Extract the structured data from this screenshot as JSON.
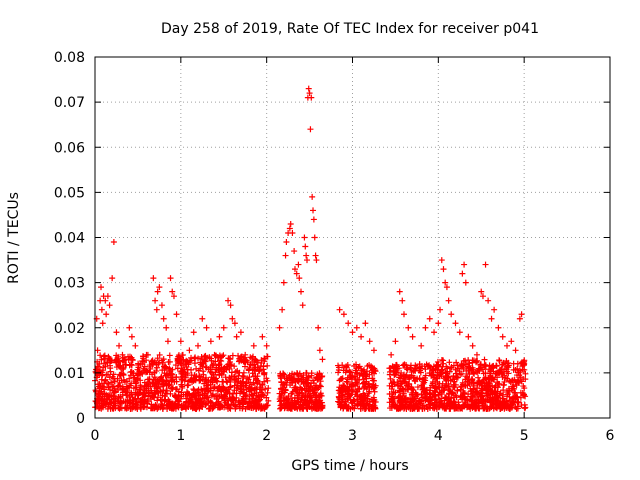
{
  "chart_data": {
    "type": "scatter",
    "title": "Day 258 of 2019, Rate Of TEC Index for receiver p041",
    "xlabel": "GPS time / hours",
    "ylabel": "ROTI / TECUs",
    "xlim": [
      0,
      6
    ],
    "ylim": [
      0,
      0.08
    ],
    "x_ticks": [
      0,
      1,
      2,
      3,
      4,
      5,
      6
    ],
    "x_tick_labels": [
      "0",
      "1",
      "2",
      "3",
      "4",
      "5",
      "6"
    ],
    "y_ticks": [
      0,
      0.01,
      0.02,
      0.03,
      0.04,
      0.05,
      0.06,
      0.07,
      0.08
    ],
    "y_tick_labels": [
      "0",
      "0.01",
      "0.02",
      "0.03",
      "0.04",
      "0.05",
      "0.06",
      "0.07",
      "0.08"
    ],
    "grid": true,
    "marker": "+",
    "color": "#ff0000",
    "series": [
      {
        "name": "ROTI",
        "points": [
          [
            0.02,
            0.022
          ],
          [
            0.03,
            0.015
          ],
          [
            0.05,
            0.012
          ],
          [
            0.06,
            0.026
          ],
          [
            0.07,
            0.029
          ],
          [
            0.08,
            0.024
          ],
          [
            0.09,
            0.021
          ],
          [
            0.1,
            0.027
          ],
          [
            0.12,
            0.026
          ],
          [
            0.13,
            0.023
          ],
          [
            0.15,
            0.027
          ],
          [
            0.17,
            0.025
          ],
          [
            0.2,
            0.031
          ],
          [
            0.22,
            0.039
          ],
          [
            0.25,
            0.019
          ],
          [
            0.28,
            0.016
          ],
          [
            0.32,
            0.014
          ],
          [
            0.35,
            0.013
          ],
          [
            0.4,
            0.02
          ],
          [
            0.43,
            0.018
          ],
          [
            0.47,
            0.016
          ],
          [
            0.55,
            0.012
          ],
          [
            0.6,
            0.014
          ],
          [
            0.68,
            0.031
          ],
          [
            0.7,
            0.026
          ],
          [
            0.72,
            0.024
          ],
          [
            0.73,
            0.028
          ],
          [
            0.75,
            0.029
          ],
          [
            0.78,
            0.025
          ],
          [
            0.8,
            0.022
          ],
          [
            0.83,
            0.02
          ],
          [
            0.85,
            0.017
          ],
          [
            0.88,
            0.031
          ],
          [
            0.9,
            0.028
          ],
          [
            0.92,
            0.027
          ],
          [
            0.95,
            0.023
          ],
          [
            1.0,
            0.017
          ],
          [
            1.05,
            0.012
          ],
          [
            1.1,
            0.015
          ],
          [
            1.15,
            0.019
          ],
          [
            1.2,
            0.016
          ],
          [
            1.25,
            0.022
          ],
          [
            1.3,
            0.02
          ],
          [
            1.35,
            0.017
          ],
          [
            1.45,
            0.018
          ],
          [
            1.5,
            0.02
          ],
          [
            1.55,
            0.026
          ],
          [
            1.58,
            0.025
          ],
          [
            1.6,
            0.022
          ],
          [
            1.63,
            0.021
          ],
          [
            1.65,
            0.018
          ],
          [
            1.7,
            0.019
          ],
          [
            1.75,
            0.014
          ],
          [
            1.85,
            0.016
          ],
          [
            1.95,
            0.018
          ],
          [
            2.0,
            0.016
          ],
          [
            2.15,
            0.02
          ],
          [
            2.18,
            0.024
          ],
          [
            2.2,
            0.03
          ],
          [
            2.22,
            0.036
          ],
          [
            2.23,
            0.039
          ],
          [
            2.25,
            0.041
          ],
          [
            2.27,
            0.042
          ],
          [
            2.28,
            0.043
          ],
          [
            2.3,
            0.041
          ],
          [
            2.32,
            0.037
          ],
          [
            2.33,
            0.033
          ],
          [
            2.35,
            0.032
          ],
          [
            2.37,
            0.034
          ],
          [
            2.38,
            0.031
          ],
          [
            2.4,
            0.028
          ],
          [
            2.42,
            0.025
          ],
          [
            2.44,
            0.04
          ],
          [
            2.45,
            0.038
          ],
          [
            2.46,
            0.036
          ],
          [
            2.47,
            0.035
          ],
          [
            2.48,
            0.071
          ],
          [
            2.49,
            0.073
          ],
          [
            2.5,
            0.072
          ],
          [
            2.51,
            0.064
          ],
          [
            2.52,
            0.071
          ],
          [
            2.53,
            0.049
          ],
          [
            2.54,
            0.046
          ],
          [
            2.55,
            0.044
          ],
          [
            2.56,
            0.04
          ],
          [
            2.57,
            0.036
          ],
          [
            2.58,
            0.035
          ],
          [
            2.6,
            0.02
          ],
          [
            2.62,
            0.015
          ],
          [
            2.65,
            0.013
          ],
          [
            2.85,
            0.024
          ],
          [
            2.9,
            0.023
          ],
          [
            2.95,
            0.021
          ],
          [
            3.0,
            0.019
          ],
          [
            3.05,
            0.02
          ],
          [
            3.1,
            0.018
          ],
          [
            3.15,
            0.021
          ],
          [
            3.2,
            0.017
          ],
          [
            3.25,
            0.015
          ],
          [
            3.45,
            0.014
          ],
          [
            3.5,
            0.017
          ],
          [
            3.55,
            0.028
          ],
          [
            3.58,
            0.026
          ],
          [
            3.6,
            0.023
          ],
          [
            3.65,
            0.02
          ],
          [
            3.7,
            0.018
          ],
          [
            3.8,
            0.016
          ],
          [
            3.85,
            0.02
          ],
          [
            3.9,
            0.022
          ],
          [
            3.95,
            0.019
          ],
          [
            4.0,
            0.021
          ],
          [
            4.02,
            0.024
          ],
          [
            4.04,
            0.035
          ],
          [
            4.06,
            0.033
          ],
          [
            4.08,
            0.03
          ],
          [
            4.1,
            0.029
          ],
          [
            4.12,
            0.026
          ],
          [
            4.15,
            0.023
          ],
          [
            4.2,
            0.021
          ],
          [
            4.25,
            0.019
          ],
          [
            4.28,
            0.032
          ],
          [
            4.3,
            0.034
          ],
          [
            4.32,
            0.03
          ],
          [
            4.35,
            0.018
          ],
          [
            4.4,
            0.016
          ],
          [
            4.45,
            0.014
          ],
          [
            4.5,
            0.028
          ],
          [
            4.52,
            0.027
          ],
          [
            4.55,
            0.034
          ],
          [
            4.58,
            0.026
          ],
          [
            4.62,
            0.022
          ],
          [
            4.65,
            0.024
          ],
          [
            4.7,
            0.02
          ],
          [
            4.75,
            0.018
          ],
          [
            4.8,
            0.016
          ],
          [
            4.85,
            0.017
          ],
          [
            4.9,
            0.015
          ],
          [
            4.95,
            0.022
          ],
          [
            4.97,
            0.023
          ],
          [
            5.0,
            0.012
          ]
        ]
      }
    ],
    "dense_bands": [
      {
        "x": [
          0.0,
          2.02
        ],
        "y": [
          0.002,
          0.014
        ]
      },
      {
        "x": [
          2.15,
          2.65
        ],
        "y": [
          0.002,
          0.01
        ]
      },
      {
        "x": [
          2.83,
          3.27
        ],
        "y": [
          0.002,
          0.012
        ]
      },
      {
        "x": [
          3.43,
          3.98
        ],
        "y": [
          0.002,
          0.012
        ]
      },
      {
        "x": [
          3.98,
          4.42
        ],
        "y": [
          0.002,
          0.013
        ]
      },
      {
        "x": [
          4.42,
          5.02
        ],
        "y": [
          0.002,
          0.013
        ]
      }
    ]
  }
}
